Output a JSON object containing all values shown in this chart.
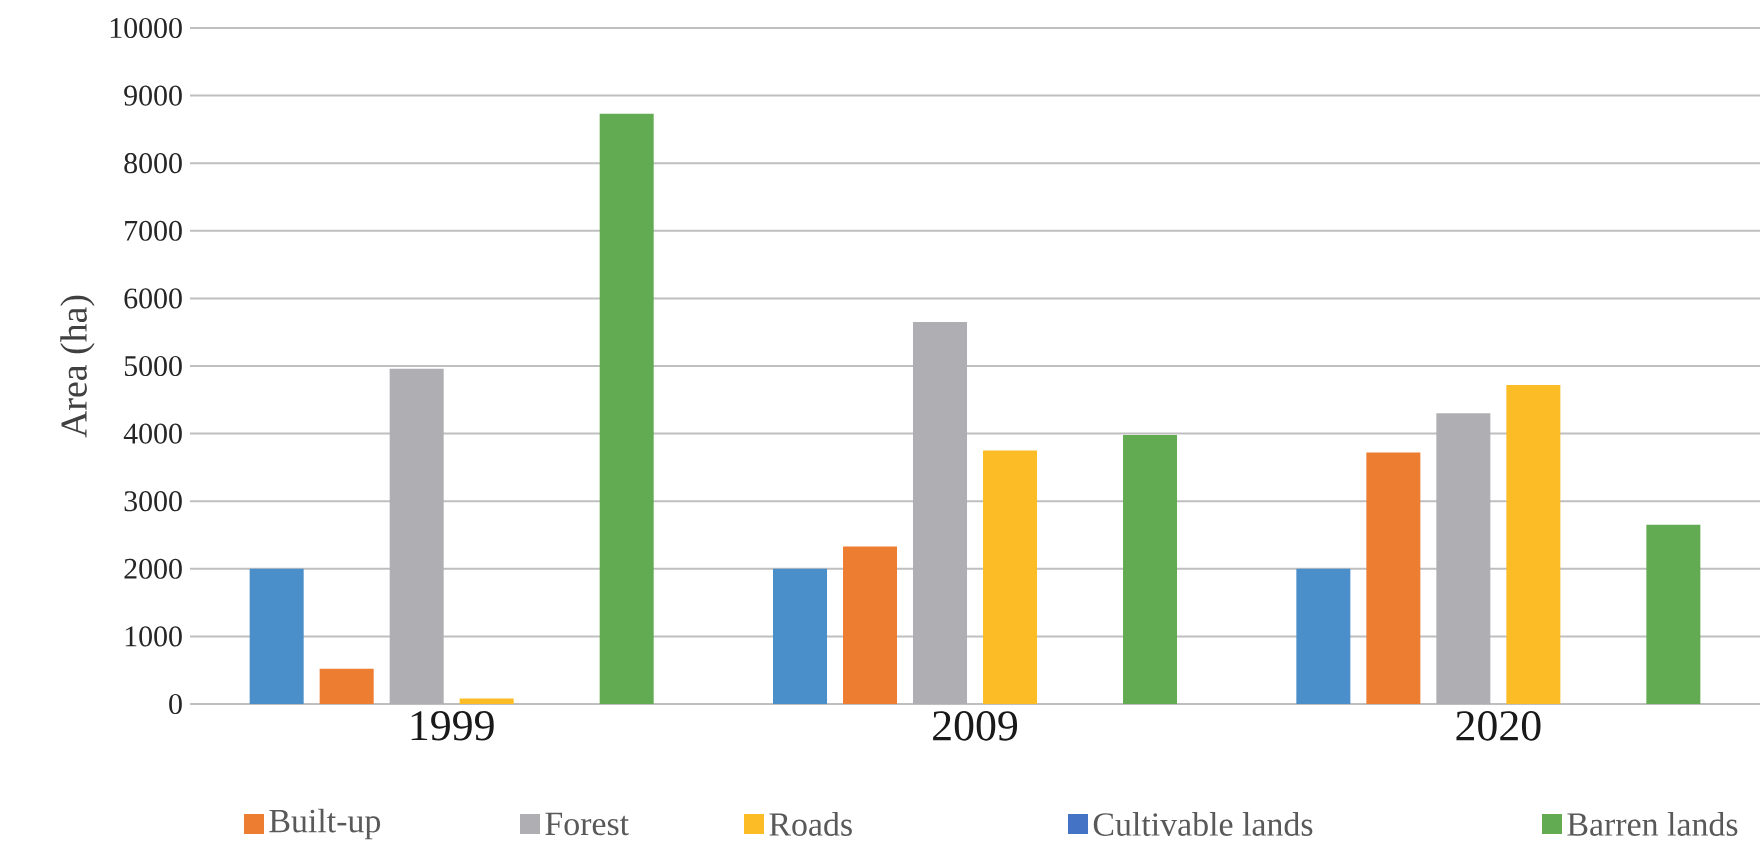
{
  "chart_data": {
    "type": "bar",
    "ylabel": "Area (ha)",
    "categories": [
      "1999",
      "2009",
      "2020"
    ],
    "series": [
      {
        "color": "#4a8fc9",
        "values": [
          2000,
          2000,
          2000
        ]
      },
      {
        "name": "Built-up",
        "color": "#ed7d31",
        "values": [
          520,
          2330,
          3720
        ]
      },
      {
        "name": "Forest",
        "color": "#afafb3",
        "values": [
          4960,
          5650,
          4300
        ]
      },
      {
        "name": "Roads",
        "color": "#fbbc25",
        "values": [
          80,
          3750,
          4720
        ]
      },
      {
        "name": "Cultivable lands",
        "color": "#4472c4",
        "values": [
          0,
          0,
          0
        ]
      },
      {
        "name": "Barren lands",
        "color": "#63ab52",
        "values": [
          8730,
          3980,
          2650
        ]
      }
    ],
    "ylim": [
      0,
      10000
    ],
    "yticks": [
      0,
      1000,
      2000,
      3000,
      4000,
      5000,
      6000,
      7000,
      8000,
      9000,
      10000
    ],
    "grid": "y",
    "legend": "bottom"
  }
}
